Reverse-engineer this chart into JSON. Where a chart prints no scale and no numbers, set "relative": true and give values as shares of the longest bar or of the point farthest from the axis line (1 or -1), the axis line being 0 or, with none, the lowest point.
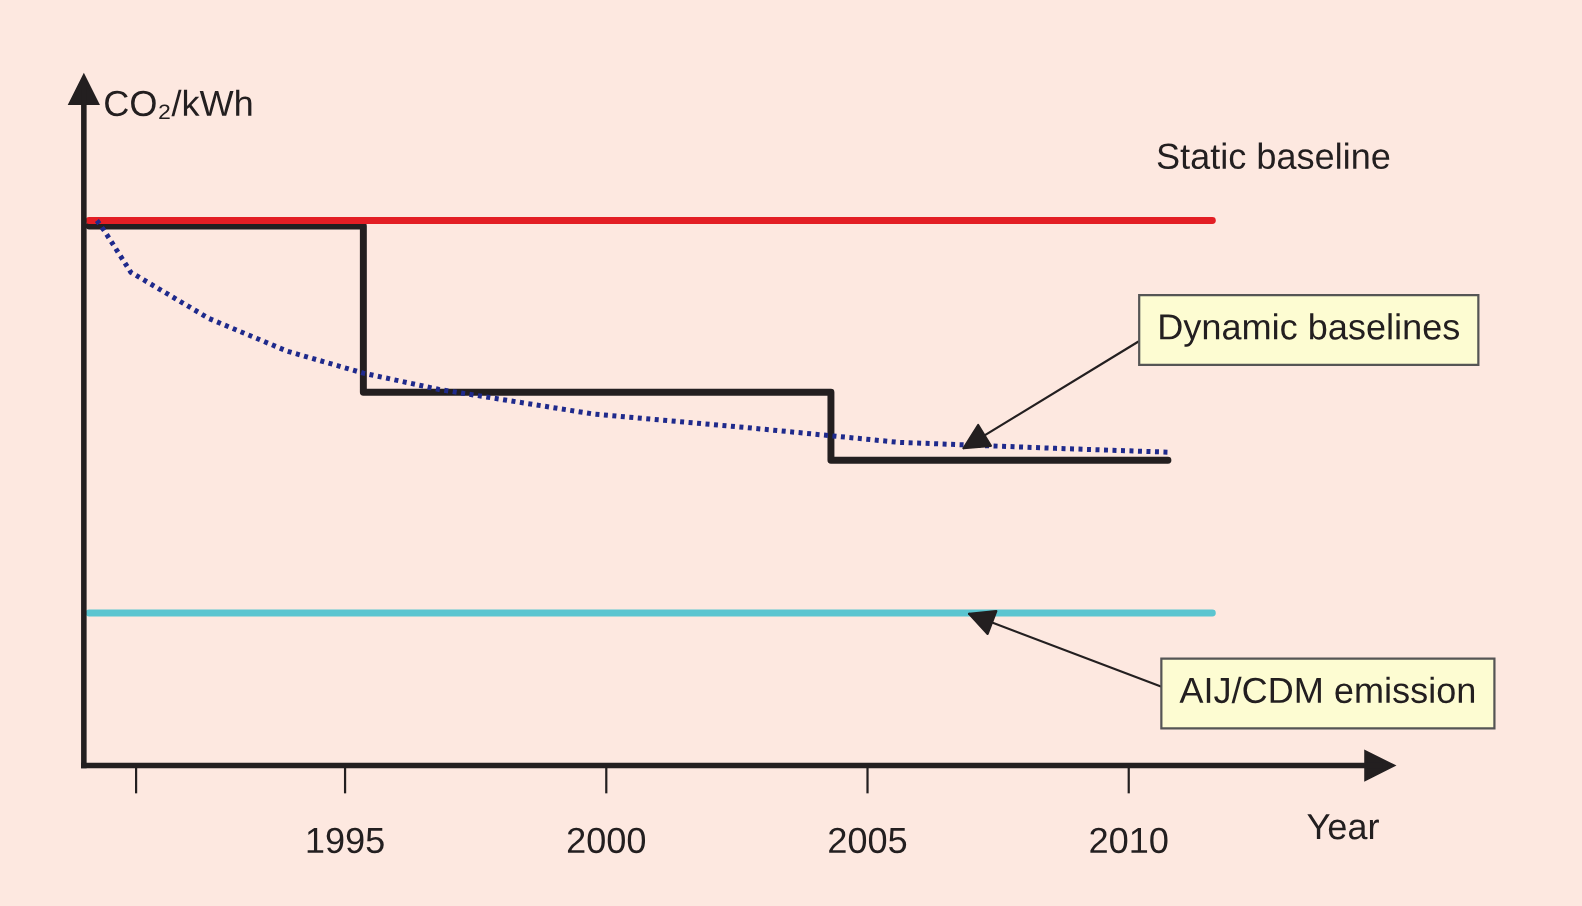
{
  "chart_data": {
    "type": "line",
    "relative": true,
    "xlabel": "Year",
    "ylabel": "CO₂/kWh",
    "xlim": [
      1990,
      2014.8
    ],
    "xticks": [
      {
        "value": 1991,
        "label": null
      },
      1995,
      2000,
      2005,
      2010
    ],
    "grid": false,
    "legend": false,
    "tick_labels": "x",
    "series": [
      {
        "color": "#e31e24",
        "line_style": "solid",
        "x": [
          1990.1,
          2011.6
        ],
        "values": [
          1,
          1
        ]
      },
      {
        "type": "step",
        "color": "#231f20",
        "line_style": "solid",
        "x": [
          1990.1,
          1995.35,
          2004.3,
          2010.75
        ],
        "values": [
          0.99,
          0.685,
          0.56,
          0.56
        ]
      },
      {
        "color": "#1f2a8c",
        "line_style": "dotted",
        "x": [
          1990.25,
          1990.4,
          1990.9,
          1992.4,
          1993.9,
          1995.35,
          1996.8,
          1999.75,
          2002.7,
          2005.6,
          2008.6,
          2010.75
        ],
        "values": [
          1,
          0.98,
          0.905,
          0.82,
          0.76,
          0.72,
          0.69,
          0.645,
          0.62,
          0.593,
          0.582,
          0.575
        ]
      },
      {
        "color": "#5bc5d0",
        "line_style": "solid",
        "x": [
          1990.1,
          2011.6
        ],
        "values": [
          0.28,
          0.28
        ]
      }
    ],
    "annotations": [
      {
        "text": "Static baseline",
        "x": 2011.6,
        "y": 1
      },
      {
        "text": "Dynamic baselines",
        "x": 2006.8,
        "y": 0.58
      },
      {
        "text": "AIJ/CDM emission",
        "x": 2006.9,
        "y": 0.28
      }
    ]
  }
}
